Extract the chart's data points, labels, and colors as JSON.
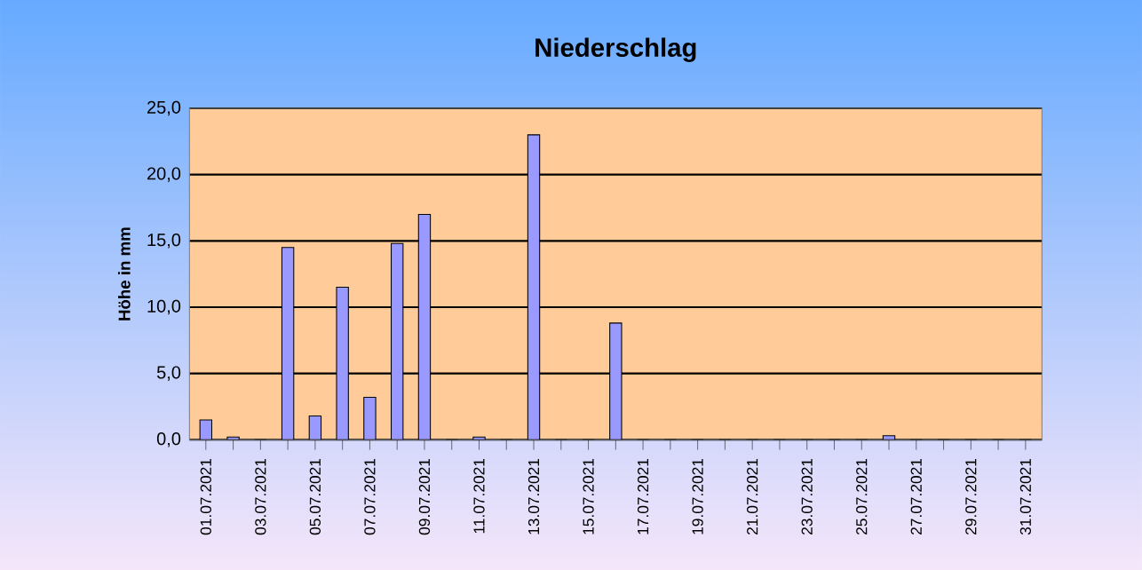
{
  "chart_data": {
    "type": "bar",
    "title": "Niederschlag",
    "ylabel": "Höhe in mm",
    "categories": [
      "01.07.2021",
      null,
      "03.07.2021",
      null,
      "05.07.2021",
      null,
      "07.07.2021",
      null,
      "09.07.2021",
      null,
      "11.07.2021",
      null,
      "13.07.2021",
      null,
      "15.07.2021",
      null,
      "17.07.2021",
      null,
      "19.07.2021",
      null,
      "21.07.2021",
      null,
      "23.07.2021",
      null,
      "25.07.2021",
      null,
      "27.07.2021",
      null,
      "29.07.2021",
      null,
      "31.07.2021"
    ],
    "values": [
      1.5,
      0.2,
      0,
      14.5,
      1.8,
      11.5,
      3.2,
      14.8,
      17.0,
      0,
      0.2,
      0,
      23.0,
      0,
      0,
      8.8,
      0,
      0,
      0,
      0,
      0,
      0,
      0,
      0,
      0,
      0.3,
      0,
      0,
      0,
      0,
      0
    ],
    "color": "#9999ff",
    "ylim": [
      0,
      25
    ],
    "yticks": [
      {
        "value": 0,
        "label": "0,0"
      },
      {
        "value": 5,
        "label": "5,0"
      },
      {
        "value": 10,
        "label": "10,0"
      },
      {
        "value": 15,
        "label": "15,0"
      },
      {
        "value": 20,
        "label": "20,0"
      },
      {
        "value": 25,
        "label": "25,0"
      }
    ],
    "grid": "y"
  }
}
